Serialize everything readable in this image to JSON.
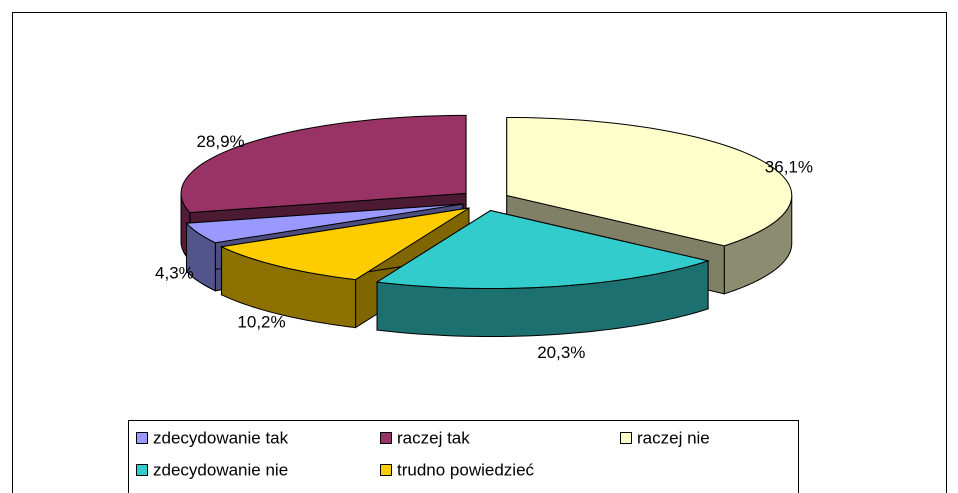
{
  "chart_data": {
    "type": "pie3d",
    "categories": [
      "zdecydowanie tak",
      "raczej tak",
      "raczej nie",
      "zdecydowanie nie",
      "trudno powiedzieć"
    ],
    "values": [
      4.3,
      28.9,
      36.1,
      20.3,
      10.2
    ],
    "value_labels": [
      "4,3%",
      "28,9%",
      "36,1%",
      "20,3%",
      "10,2%"
    ],
    "colors": [
      "#9999ff",
      "#993366",
      "#ffffcc",
      "#33cccc",
      "#ffcc00"
    ]
  }
}
